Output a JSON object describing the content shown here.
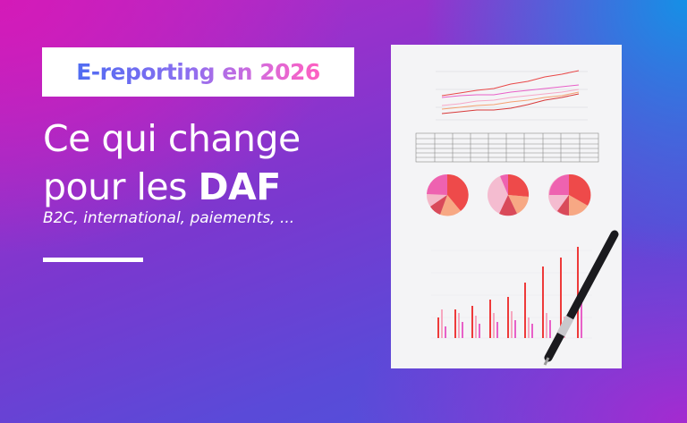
{
  "badge": {
    "text": "E-reporting en 2026"
  },
  "headline": {
    "line1": "Ce qui change",
    "line2_prefix": "pour les ",
    "line2_bold": "DAF"
  },
  "subtitle": "B2C, international, paiements, ...",
  "colors": {
    "gradient_magenta": "#d41ab8",
    "gradient_blue": "#1590e6",
    "gradient_purple": "#7a38cf",
    "badge_text_start": "#4f6cf2",
    "badge_text_end": "#ff5fc0",
    "chart_red": "#ee4444",
    "chart_pink": "#f27ac0"
  },
  "illustration": {
    "description_icons": [
      "report-paper-icon",
      "line-chart-icon",
      "pie-chart-icon",
      "bar-chart-icon",
      "pen-icon"
    ]
  }
}
